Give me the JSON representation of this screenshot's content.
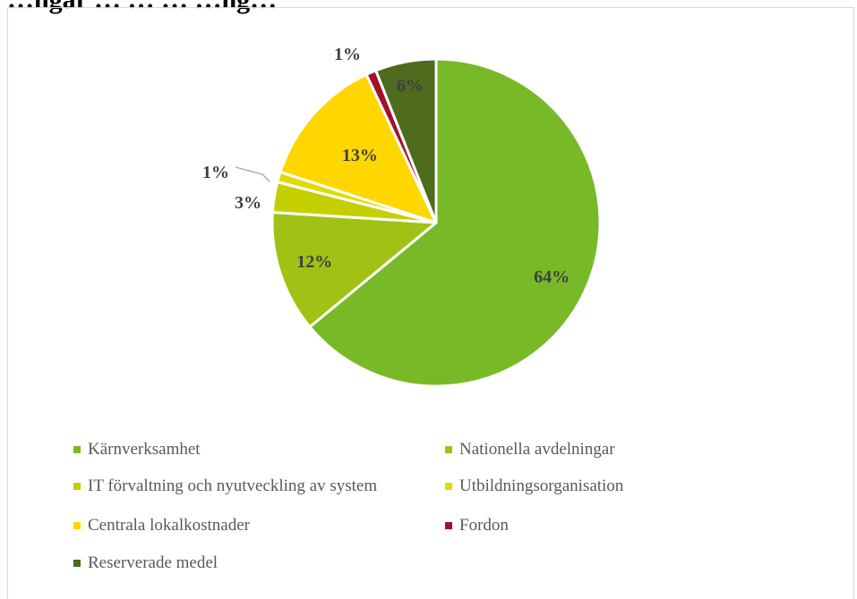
{
  "chart_data": {
    "type": "pie",
    "title": "…ngar … … … …ng…",
    "slices": [
      {
        "name": "Kärnverksamhet",
        "value": 64,
        "label": "64%",
        "color": "#78B928"
      },
      {
        "name": "Nationella avdelningar",
        "value": 12,
        "label": "12%",
        "color": "#A0C214"
      },
      {
        "name": "IT förvaltning och nyutveckling av system",
        "value": 3,
        "label": "3%",
        "color": "#C5CF00"
      },
      {
        "name": "Utbildningsorganisation",
        "value": 1,
        "label": "1%",
        "color": "#E0DA00"
      },
      {
        "name": "Centrala lokalkostnader",
        "value": 13,
        "label": "13%",
        "color": "#FFD700"
      },
      {
        "name": "Fordon",
        "value": 1,
        "label": "1%",
        "color": "#A50E2D"
      },
      {
        "name": "Reserverade medel",
        "value": 6,
        "label": "6%",
        "color": "#4E6B1E"
      }
    ],
    "start_angle": 0,
    "direction": "clockwise",
    "legend_position": "bottom"
  }
}
